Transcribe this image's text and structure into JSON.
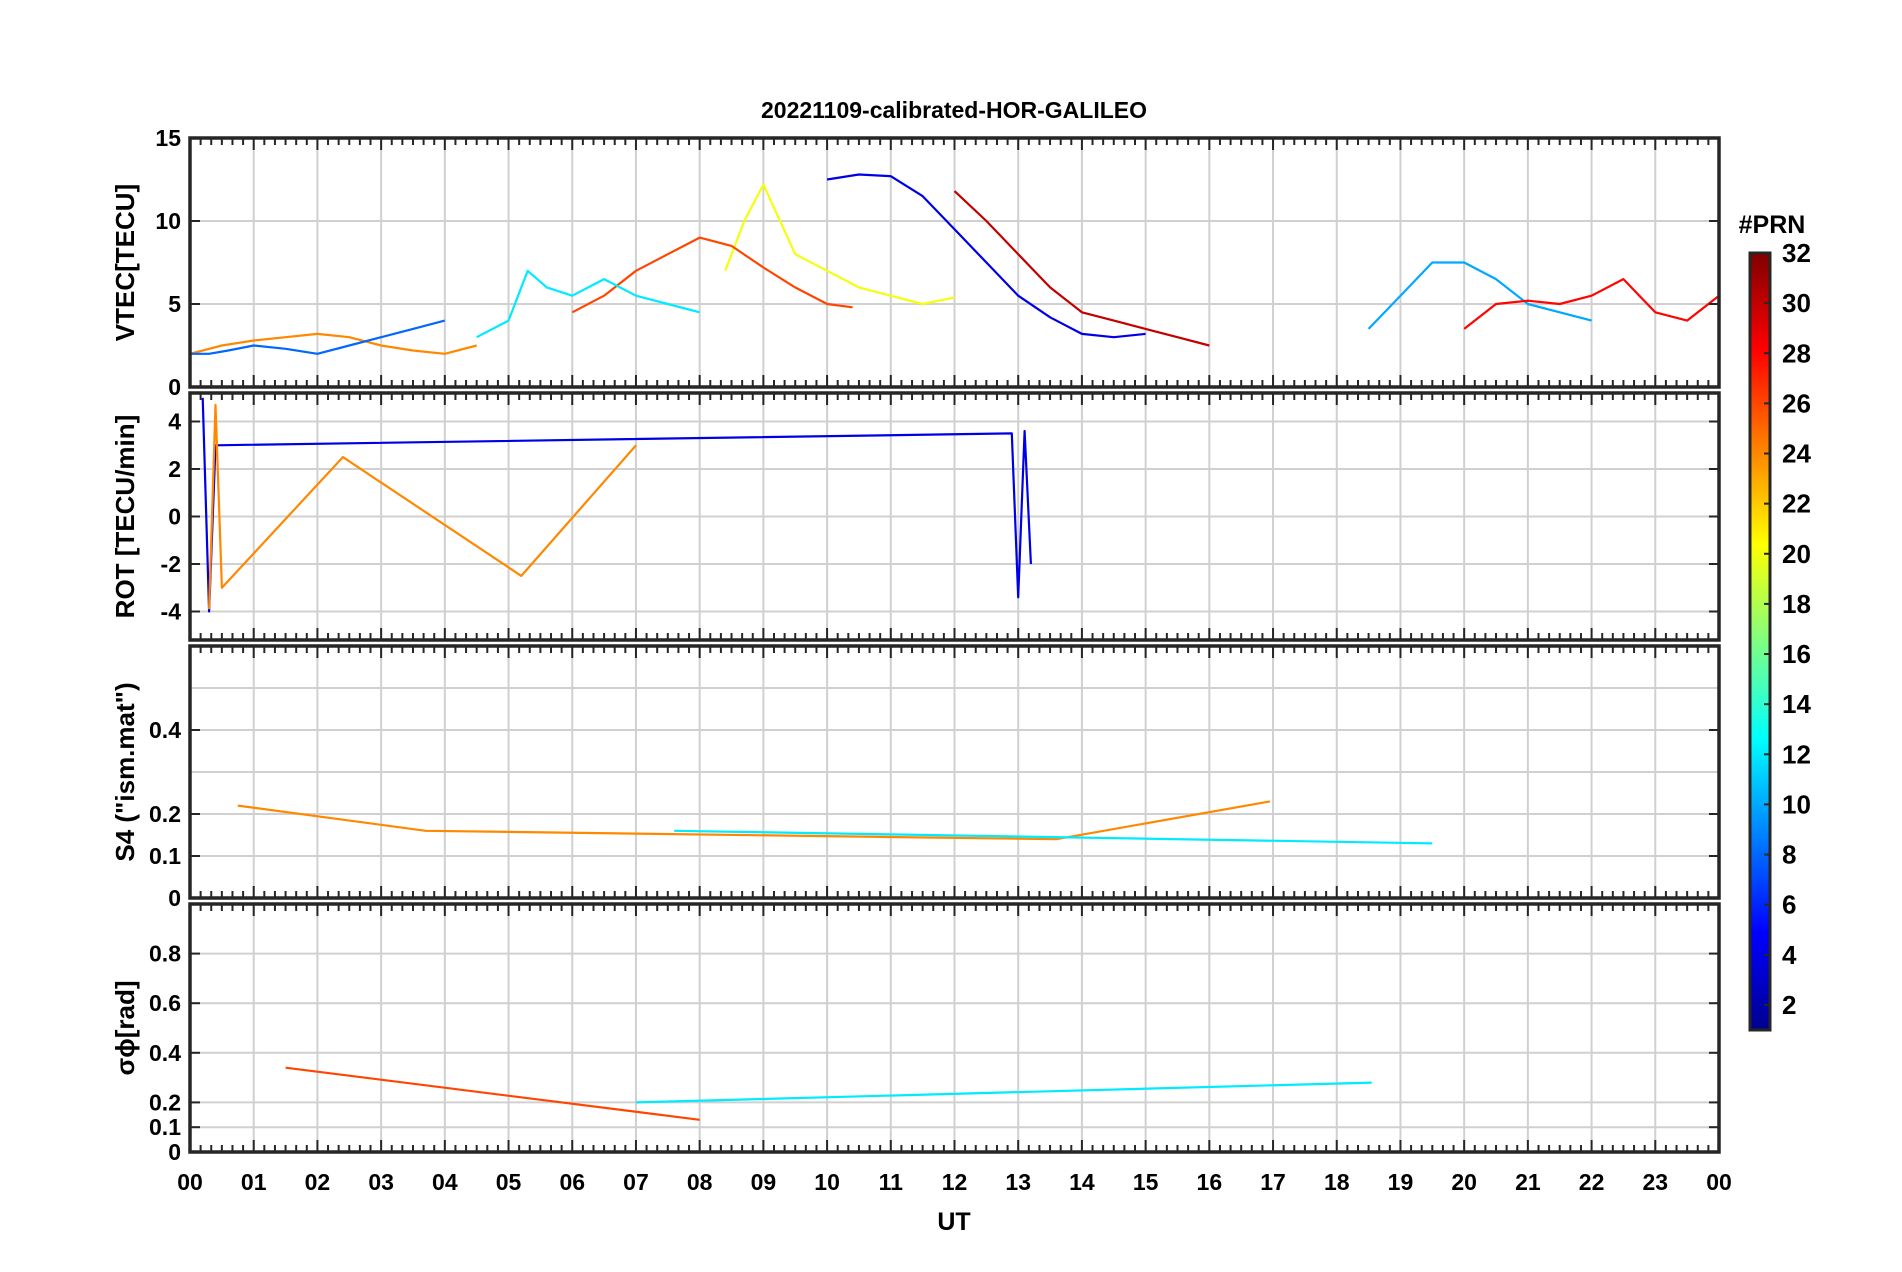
{
  "figure": {
    "title": "20221109-calibrated-HOR-GALILEO",
    "xlabel": "UT",
    "x_tick_labels": [
      "00",
      "01",
      "02",
      "03",
      "04",
      "05",
      "06",
      "07",
      "08",
      "09",
      "10",
      "11",
      "12",
      "13",
      "14",
      "15",
      "16",
      "17",
      "18",
      "19",
      "20",
      "21",
      "22",
      "23",
      "00"
    ]
  },
  "colorbar": {
    "label": "#PRN",
    "colormap": "jet",
    "range": [
      1,
      32
    ],
    "tick_labels": [
      "2",
      "4",
      "6",
      "8",
      "10",
      "12",
      "14",
      "16",
      "18",
      "20",
      "22",
      "24",
      "26",
      "28",
      "30",
      "32"
    ],
    "colors": [
      "#00008f",
      "#0000ff",
      "#0080ff",
      "#00ffff",
      "#80ff80",
      "#ffff00",
      "#ff8000",
      "#ff0000",
      "#800000"
    ]
  },
  "chart_data": [
    {
      "type": "line",
      "panel": "vtec",
      "ylabel": "VTEC[TECU]",
      "ylim": [
        0,
        15
      ],
      "y_tick_labels": [
        "0",
        "5",
        "10",
        "15"
      ],
      "x_range_hours": [
        0,
        24
      ],
      "grid": true,
      "series": [
        {
          "prn": 4,
          "x": [
            10.0,
            10.5,
            11.0,
            11.5,
            12.0,
            12.5,
            13.0,
            13.5,
            14.0,
            14.5,
            15.0
          ],
          "y": [
            12.5,
            12.8,
            12.7,
            11.5,
            9.5,
            7.5,
            5.5,
            4.2,
            3.2,
            3.0,
            3.2
          ]
        },
        {
          "prn": 20,
          "x": [
            8.4,
            8.7,
            9.0,
            9.5,
            10.0,
            10.5,
            11.0,
            11.5,
            12.0
          ],
          "y": [
            7.0,
            10.0,
            12.2,
            8.0,
            7.0,
            6.0,
            5.5,
            5.0,
            5.4
          ]
        },
        {
          "prn": 26,
          "x": [
            6.0,
            6.5,
            7.0,
            7.5,
            8.0,
            8.5,
            9.0,
            9.5,
            10.0,
            10.4
          ],
          "y": [
            4.5,
            5.5,
            7.0,
            8.0,
            9.0,
            8.5,
            7.2,
            6.0,
            5.0,
            4.8
          ]
        },
        {
          "prn": 12,
          "x": [
            4.5,
            5.0,
            5.3,
            5.6,
            6.0,
            6.5,
            7.0,
            7.5,
            8.0
          ],
          "y": [
            3.0,
            4.0,
            7.0,
            6.0,
            5.5,
            6.5,
            5.5,
            5.0,
            4.5
          ]
        },
        {
          "prn": 30,
          "x": [
            12.0,
            12.5,
            13.0,
            13.5,
            14.0,
            14.5,
            15.0,
            15.5,
            16.0
          ],
          "y": [
            11.8,
            10.0,
            8.0,
            6.0,
            4.5,
            4.0,
            3.5,
            3.0,
            2.5
          ]
        },
        {
          "prn": 10,
          "x": [
            18.5,
            19.0,
            19.5,
            20.0,
            20.5,
            21.0,
            21.5,
            22.0
          ],
          "y": [
            3.5,
            5.5,
            7.5,
            7.5,
            6.5,
            5.0,
            4.5,
            4.0
          ]
        },
        {
          "prn": 28,
          "x": [
            20.0,
            20.5,
            21.0,
            21.5,
            22.0,
            22.5,
            23.0,
            23.5,
            24.0
          ],
          "y": [
            3.5,
            5.0,
            5.2,
            5.0,
            5.5,
            6.5,
            4.5,
            4.0,
            5.5
          ]
        },
        {
          "prn": 24,
          "x": [
            0.0,
            0.5,
            1.0,
            1.5,
            2.0,
            2.5,
            3.0,
            3.5,
            4.0,
            4.5
          ],
          "y": [
            2.0,
            2.5,
            2.8,
            3.0,
            3.2,
            3.0,
            2.5,
            2.2,
            2.0,
            2.5
          ]
        },
        {
          "prn": 8,
          "x": [
            0.0,
            0.3,
            0.6,
            1.0,
            1.5,
            2.0,
            2.5,
            3.0,
            3.5,
            4.0
          ],
          "y": [
            2.0,
            2.0,
            2.2,
            2.5,
            2.3,
            2.0,
            2.5,
            3.0,
            3.5,
            4.0
          ]
        }
      ]
    },
    {
      "type": "line",
      "panel": "rot",
      "ylabel": "ROT [TECU/min]",
      "ylim": [
        -5.2,
        5.2
      ],
      "y_tick_labels": [
        "-4",
        "-2",
        "0",
        "2",
        "4"
      ],
      "x_range_hours": [
        0,
        24
      ],
      "grid": true,
      "series": [
        {
          "prn": 4,
          "x": [
            0.2,
            0.3,
            0.4,
            12.9,
            13.0,
            13.1,
            13.2
          ],
          "y": [
            5.0,
            -4.0,
            3.0,
            3.5,
            -3.4,
            3.6,
            -2.0
          ]
        },
        {
          "prn": 24,
          "x": [
            0.3,
            0.4,
            0.5,
            2.4,
            5.2,
            7.0
          ],
          "y": [
            -3.9,
            4.7,
            -3.0,
            2.5,
            -2.5,
            3.0
          ]
        }
      ]
    },
    {
      "type": "line",
      "panel": "s4",
      "ylabel": "S4 (\"ism.mat\")",
      "ylim": [
        0,
        0.6
      ],
      "y_tick_labels": [
        "0",
        "0.1",
        "0.2",
        "0.4"
      ],
      "x_range_hours": [
        0,
        24
      ],
      "grid": true,
      "series": [
        {
          "prn": 24,
          "x": [
            0.75,
            3.7,
            13.6,
            16.95
          ],
          "y": [
            0.22,
            0.16,
            0.14,
            0.23
          ]
        },
        {
          "prn": 12,
          "x": [
            7.6,
            19.5
          ],
          "y": [
            0.16,
            0.13
          ]
        }
      ]
    },
    {
      "type": "line",
      "panel": "sigma_phi",
      "ylabel": "σϕ[rad]",
      "ylim": [
        0,
        1.0
      ],
      "y_tick_labels": [
        "0",
        "0.1",
        "0.2",
        "0.4",
        "0.6",
        "0.8"
      ],
      "x_range_hours": [
        0,
        24
      ],
      "grid": true,
      "series": [
        {
          "prn": 26,
          "x": [
            1.5,
            8.0
          ],
          "y": [
            0.34,
            0.13
          ]
        },
        {
          "prn": 12,
          "x": [
            18.55,
            7.0
          ],
          "y": [
            0.28,
            0.2
          ]
        }
      ]
    }
  ]
}
